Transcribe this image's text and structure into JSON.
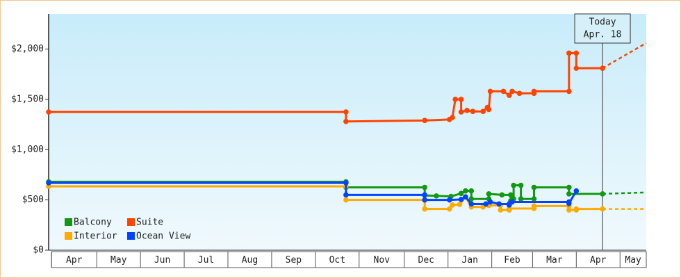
{
  "chart_data": {
    "type": "line",
    "ylim": [
      0,
      2350
    ],
    "yticks": [
      {
        "value": 0,
        "label": "$0"
      },
      {
        "value": 500,
        "label": "$500"
      },
      {
        "value": 1000,
        "label": "$1,000"
      },
      {
        "value": 1500,
        "label": "$1,500"
      },
      {
        "value": 2000,
        "label": "$2,000"
      }
    ],
    "xlim": [
      0,
      410
    ],
    "xticks": [
      {
        "value": 2,
        "label": "Apr"
      },
      {
        "value": 33,
        "label": "May"
      },
      {
        "value": 63,
        "label": "Jun"
      },
      {
        "value": 93,
        "label": "Jul"
      },
      {
        "value": 123,
        "label": "Aug"
      },
      {
        "value": 153,
        "label": "Sep"
      },
      {
        "value": 183,
        "label": "Oct"
      },
      {
        "value": 213,
        "label": "Nov"
      },
      {
        "value": 244,
        "label": "Dec"
      },
      {
        "value": 274,
        "label": "Jan"
      },
      {
        "value": 304,
        "label": "Feb"
      },
      {
        "value": 332,
        "label": "Mar"
      },
      {
        "value": 362,
        "label": "Apr"
      },
      {
        "value": 392,
        "label": "May"
      }
    ],
    "annotation": {
      "x": 380,
      "lines": [
        "Today",
        "Apr. 18"
      ]
    },
    "series": [
      {
        "name": "Balcony",
        "color": "#119911",
        "x": [
          0,
          204,
          204,
          258,
          258,
          266,
          276,
          283,
          286,
          290,
          290,
          302,
          302,
          311,
          317,
          317,
          319,
          319,
          324,
          324,
          333,
          333,
          357,
          357,
          380
        ],
        "values": [
          680,
          680,
          625,
          625,
          545,
          540,
          535,
          565,
          590,
          590,
          510,
          510,
          560,
          550,
          550,
          490,
          510,
          645,
          645,
          510,
          510,
          625,
          625,
          560,
          560
        ],
        "forecast_x": [
          380,
          410
        ],
        "forecast_values": [
          560,
          575
        ]
      },
      {
        "name": "Suite",
        "color": "#ff4400",
        "x": [
          0,
          204,
          204,
          258,
          275,
          277,
          279,
          283,
          283,
          287,
          291,
          298,
          301,
          302,
          303,
          312,
          316,
          318,
          323,
          333,
          333,
          357,
          357,
          362,
          362,
          380
        ],
        "values": [
          1375,
          1375,
          1280,
          1290,
          1300,
          1320,
          1500,
          1500,
          1375,
          1390,
          1380,
          1380,
          1420,
          1400,
          1580,
          1580,
          1540,
          1580,
          1560,
          1560,
          1580,
          1580,
          1960,
          1960,
          1810,
          1810
        ],
        "forecast_x": [
          380,
          410
        ],
        "forecast_values": [
          1810,
          2060
        ]
      },
      {
        "name": "Interior",
        "color": "#ffaa00",
        "x": [
          0,
          204,
          204,
          258,
          258,
          275,
          277,
          282,
          286,
          290,
          298,
          302,
          310,
          310,
          316,
          316,
          333,
          333,
          357,
          357,
          362,
          362,
          380
        ],
        "values": [
          635,
          635,
          500,
          500,
          410,
          410,
          450,
          455,
          530,
          430,
          430,
          445,
          445,
          400,
          400,
          415,
          415,
          440,
          440,
          400,
          400,
          410,
          410
        ],
        "forecast_x": [
          380,
          410
        ],
        "forecast_values": [
          410,
          410
        ]
      },
      {
        "name": "Ocean View",
        "color": "#0044ff",
        "x": [
          0,
          204,
          204,
          258,
          258,
          275,
          283,
          286,
          290,
          300,
          303,
          309,
          316,
          316,
          318,
          357,
          357,
          362
        ],
        "values": [
          670,
          670,
          550,
          550,
          500,
          500,
          505,
          530,
          460,
          460,
          480,
          460,
          460,
          450,
          480,
          480,
          465,
          590
        ]
      }
    ]
  }
}
